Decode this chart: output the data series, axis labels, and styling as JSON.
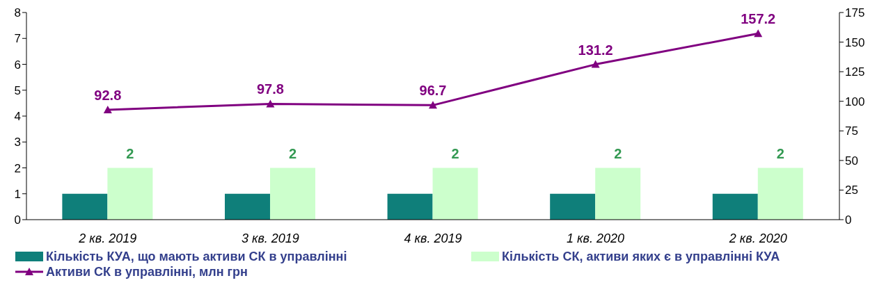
{
  "chart_data": {
    "type": "bar",
    "categories": [
      "2 кв. 2019",
      "3 кв. 2019",
      "4 кв. 2019",
      "1 кв. 2020",
      "2 кв. 2020"
    ],
    "series": [
      {
        "name": "Кількість КУА, що мають активи СК в управлінні",
        "color": "#0f7f7a",
        "values": [
          1,
          1,
          1,
          1,
          1
        ]
      },
      {
        "name": "Кількість СК, активи яких є в управлінні КУА",
        "color": "#ccffcc",
        "values": [
          2,
          2,
          2,
          2,
          2
        ],
        "value_labels": [
          "2",
          "2",
          "2",
          "2",
          "2"
        ]
      },
      {
        "name": "Активи СК в управлінні, млн грн",
        "type": "line",
        "axis": "y2",
        "color": "#800080",
        "marker": "triangle",
        "values": [
          92.8,
          97.8,
          96.7,
          131.2,
          157.2
        ],
        "value_labels": [
          "92.8",
          "97.8",
          "96.7",
          "131.2",
          "157.2"
        ]
      }
    ],
    "ylim": [
      0,
      8
    ],
    "yticks": [
      0,
      1,
      2,
      3,
      4,
      5,
      6,
      7,
      8
    ],
    "y2lim": [
      0,
      175
    ],
    "y2ticks": [
      0,
      25,
      50,
      75,
      100,
      125,
      150,
      175
    ],
    "grid": false,
    "legend": "bottom"
  }
}
